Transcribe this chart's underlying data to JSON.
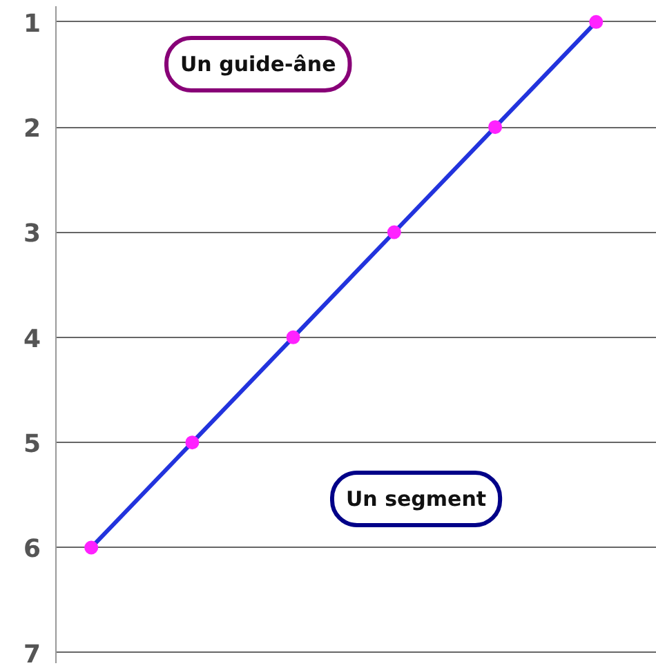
{
  "chart_data": {
    "type": "line",
    "categories": [
      null,
      null,
      null,
      null,
      null,
      null
    ],
    "series": [
      {
        "color": "#2233dd",
        "colors": [
          "#ff22ff",
          "#ff22ff",
          "#ff22ff",
          "#ff22ff",
          "#ff22ff",
          "#ff22ff"
        ],
        "values": [
          6,
          5,
          4,
          3,
          2,
          1
        ]
      }
    ],
    "ylim": [
      7.1,
      0.85
    ],
    "yticks": [
      1,
      2,
      3,
      4,
      5,
      6,
      7
    ],
    "grid": "y",
    "marker": "circle",
    "line_style": "solid",
    "tick_labels": "y",
    "annotations": [
      "Un guide-âne",
      "Un segment"
    ]
  }
}
